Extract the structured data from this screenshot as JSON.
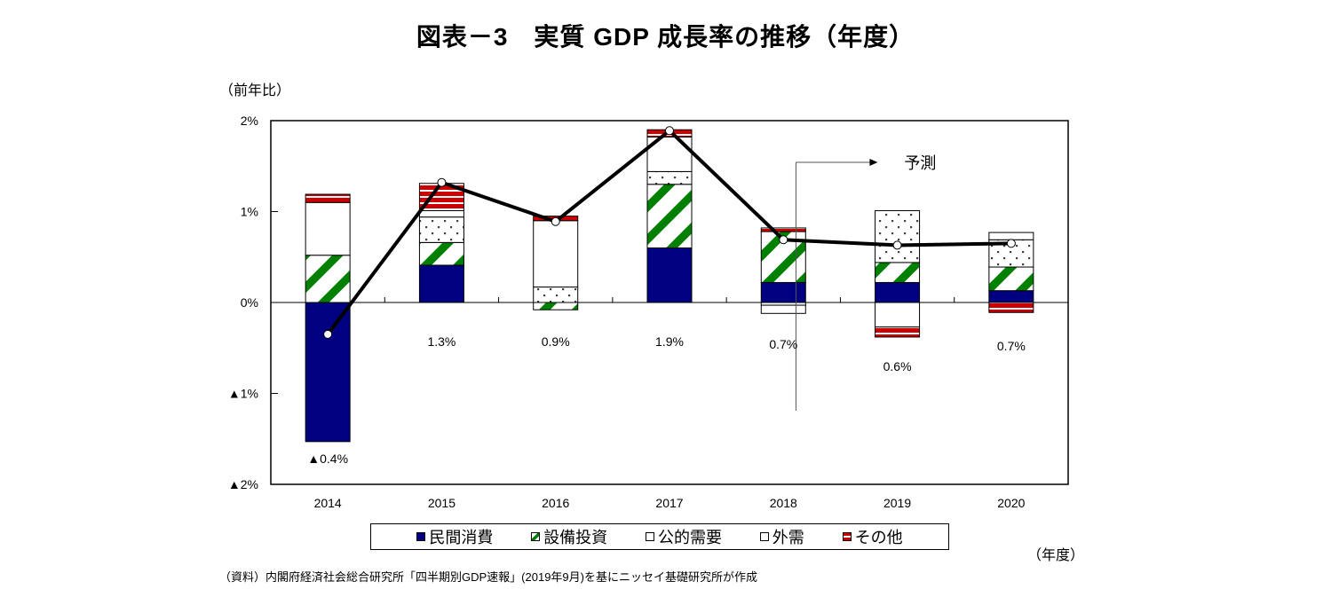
{
  "chart_data": {
    "type": "bar",
    "subtype": "stacked-bar-with-line",
    "title": "図表－3　実質 GDP 成長率の推移（年度）",
    "ylabel": "（前年比）",
    "xlabel": "（年度）",
    "ylim": [
      -2,
      2
    ],
    "yticks": [
      {
        "value": 2,
        "label": "2%"
      },
      {
        "value": 1,
        "label": "1%"
      },
      {
        "value": 0,
        "label": "0%"
      },
      {
        "value": -1,
        "label": "▲1%"
      },
      {
        "value": -2,
        "label": "▲2%"
      }
    ],
    "grid": false,
    "categories": [
      "2014",
      "2015",
      "2016",
      "2017",
      "2018",
      "2019",
      "2020"
    ],
    "series": [
      {
        "name": "民間消費",
        "key": "consumption",
        "color": "#000080",
        "pattern": "solid",
        "values": [
          -1.53,
          0.41,
          0.0,
          0.6,
          0.22,
          0.22,
          0.13
        ]
      },
      {
        "name": "設備投資",
        "key": "investment",
        "color": "#008000",
        "pattern": "diagonal-stripes",
        "values": [
          0.52,
          0.25,
          -0.08,
          0.7,
          0.56,
          0.22,
          0.26
        ]
      },
      {
        "name": "公的需要",
        "key": "public",
        "color": "#404040",
        "pattern": "dots",
        "values": [
          0.0,
          0.28,
          0.17,
          0.14,
          -0.03,
          0.57,
          0.3
        ]
      },
      {
        "name": "外需",
        "key": "external",
        "color": "#ffffff",
        "pattern": "blank",
        "values": [
          0.58,
          0.07,
          0.73,
          0.38,
          -0.09,
          -0.27,
          0.08
        ]
      },
      {
        "name": "その他",
        "key": "other",
        "color": "#cc0000",
        "pattern": "horizontal-stripes",
        "values": [
          0.09,
          0.3,
          0.05,
          0.08,
          0.04,
          -0.11,
          -0.11
        ]
      }
    ],
    "line": {
      "name": "実質GDP成長率",
      "values": [
        -0.35,
        1.32,
        0.89,
        1.89,
        0.69,
        0.63,
        0.65
      ],
      "labels": [
        "▲0.4%",
        "1.3%",
        "0.9%",
        "1.9%",
        "0.7%",
        "0.6%",
        "0.7%"
      ]
    },
    "annotations": [
      {
        "text": "予測",
        "from_category": "2019",
        "type": "forecast-arrow"
      }
    ],
    "legend_position": "bottom"
  },
  "legend": [
    {
      "label": "民間消費",
      "color": "#000080",
      "pattern": "solid"
    },
    {
      "label": "設備投資",
      "color": "#008000",
      "pattern": "diagonal-stripes"
    },
    {
      "label": "公的需要",
      "color": "#404040",
      "pattern": "dots"
    },
    {
      "label": "外需",
      "color": "#ffffff",
      "pattern": "blank"
    },
    {
      "label": "その他",
      "color": "#cc0000",
      "pattern": "horizontal-stripes"
    }
  ],
  "source": "（資料）内閣府経済社会総合研究所「四半期別GDP速報」(2019年9月)を基にニッセイ基礎研究所が作成"
}
